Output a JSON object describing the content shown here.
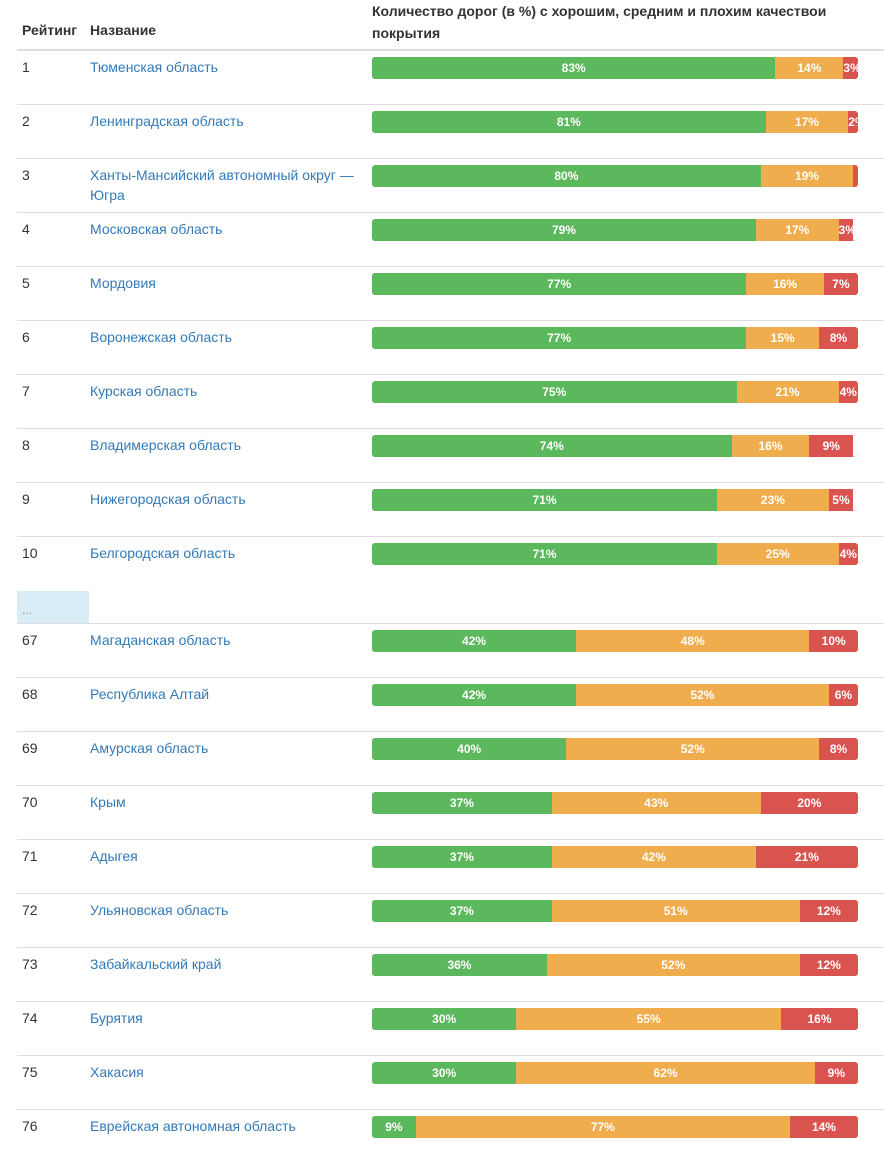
{
  "header": {
    "rank": "Рейтинг",
    "name": "Название",
    "bar": "Количество дорог (в %) с хорошим, средним и плохим качествои покрытия"
  },
  "colors": {
    "good": "#5cb85c",
    "medium": "#f0ad4e",
    "bad": "#d9534f",
    "link": "#337ab7"
  },
  "gap_label": "...",
  "top_rows": [
    {
      "rank": "1",
      "name": "Тюменская область",
      "good": 83,
      "medium": 14,
      "bad": 3
    },
    {
      "rank": "2",
      "name": "Ленинградская область",
      "good": 81,
      "medium": 17,
      "bad": 2
    },
    {
      "rank": "3",
      "name": "Ханты-Мансийский автономный округ — Югра",
      "good": 80,
      "medium": 19,
      "bad": 1
    },
    {
      "rank": "4",
      "name": "Московская область",
      "good": 79,
      "medium": 17,
      "bad": 3
    },
    {
      "rank": "5",
      "name": "Мордовия",
      "good": 77,
      "medium": 16,
      "bad": 7
    },
    {
      "rank": "6",
      "name": "Воронежская область",
      "good": 77,
      "medium": 15,
      "bad": 8
    },
    {
      "rank": "7",
      "name": "Курская область",
      "good": 75,
      "medium": 21,
      "bad": 4
    },
    {
      "rank": "8",
      "name": "Владимерская область",
      "good": 74,
      "medium": 16,
      "bad": 9
    },
    {
      "rank": "9",
      "name": "Нижегородская область",
      "good": 71,
      "medium": 23,
      "bad": 5
    },
    {
      "rank": "10",
      "name": "Белгородская область",
      "good": 71,
      "medium": 25,
      "bad": 4
    }
  ],
  "bottom_rows": [
    {
      "rank": "67",
      "name": "Магаданская область",
      "good": 42,
      "medium": 48,
      "bad": 10
    },
    {
      "rank": "68",
      "name": "Республика Алтай",
      "good": 42,
      "medium": 52,
      "bad": 6
    },
    {
      "rank": "69",
      "name": "Амурская область",
      "good": 40,
      "medium": 52,
      "bad": 8
    },
    {
      "rank": "70",
      "name": "Крым",
      "good": 37,
      "medium": 43,
      "bad": 20
    },
    {
      "rank": "71",
      "name": "Адыгея",
      "good": 37,
      "medium": 42,
      "bad": 21
    },
    {
      "rank": "72",
      "name": "Ульяновская область",
      "good": 37,
      "medium": 51,
      "bad": 12
    },
    {
      "rank": "73",
      "name": "Забайкальский край",
      "good": 36,
      "medium": 52,
      "bad": 12
    },
    {
      "rank": "74",
      "name": "Бурятия",
      "good": 30,
      "medium": 55,
      "bad": 16
    },
    {
      "rank": "75",
      "name": "Хакасия",
      "good": 30,
      "medium": 62,
      "bad": 9
    },
    {
      "rank": "76",
      "name": "Еврейская автономная область",
      "good": 9,
      "medium": 77,
      "bad": 14
    }
  ]
}
